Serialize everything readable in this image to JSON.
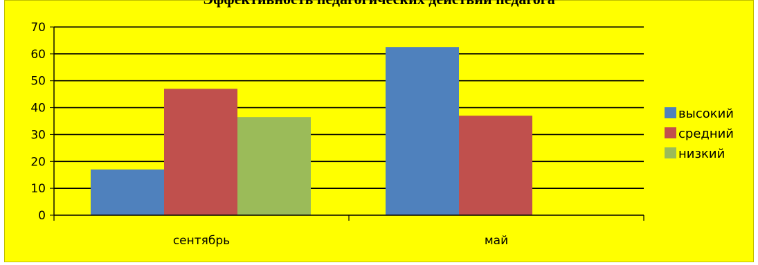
{
  "chart_data": {
    "type": "bar",
    "title": "Эффективность педагогических действий педагога",
    "categories": [
      "сентябрь",
      "май"
    ],
    "series": [
      {
        "name": "высокий",
        "values": [
          17,
          62.5
        ]
      },
      {
        "name": "средний",
        "values": [
          47,
          37
        ]
      },
      {
        "name": "низкий",
        "values": [
          36.5,
          0
        ]
      }
    ],
    "ylim": [
      0,
      70
    ],
    "yticks": [
      0,
      10,
      20,
      30,
      40,
      50,
      60,
      70
    ],
    "grid": true,
    "legend": "right",
    "colors": {
      "высокий": "#4f81bd",
      "средний": "#c0504d",
      "низкий": "#9bbb59",
      "background": "#ffff00"
    }
  }
}
